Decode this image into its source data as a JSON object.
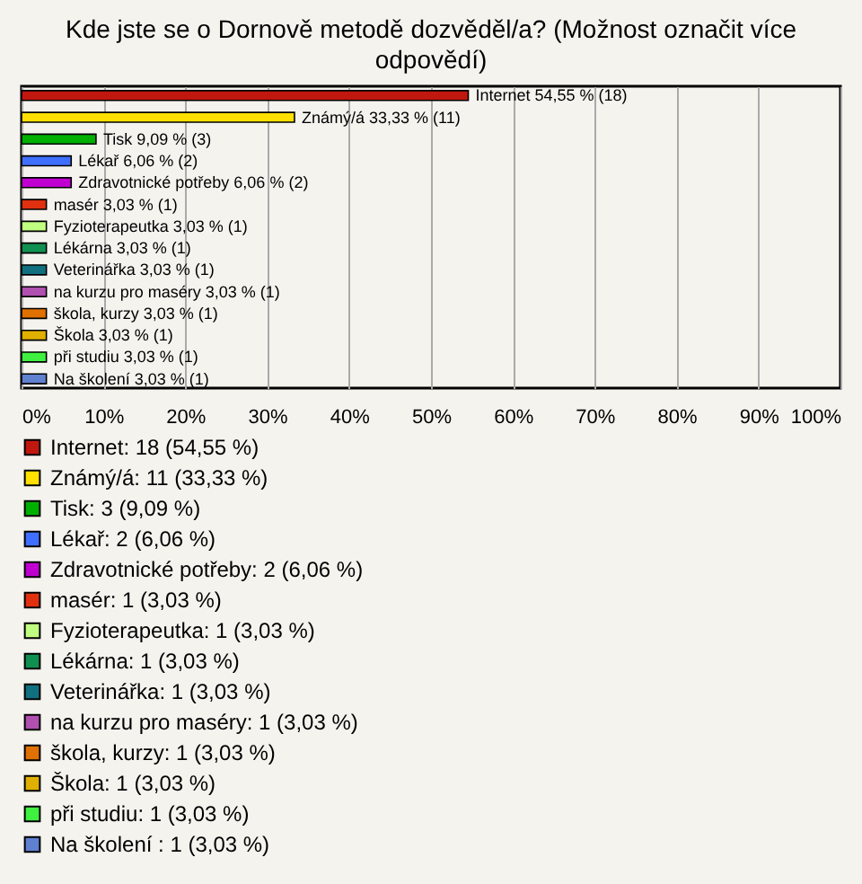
{
  "chart_data": {
    "type": "bar",
    "orientation": "horizontal",
    "stacked": true,
    "title": "Kde jste se o Dornově metodě dozvěděl/a? (Možnost označit více odpovědí)",
    "categories": [
      null,
      null,
      null,
      null,
      null,
      null,
      null,
      null,
      null,
      null,
      null,
      null,
      null,
      null
    ],
    "series": [
      {
        "name": "Internet: 18 (54,55 %)",
        "color": "#c0170f",
        "values": [
          54.55,
          null,
          null,
          null,
          null,
          null,
          null,
          null,
          null,
          null,
          null,
          null,
          null,
          null
        ],
        "value_labels": [
          "Internet 54,55 % (18)",
          null,
          null,
          null,
          null,
          null,
          null,
          null,
          null,
          null,
          null,
          null,
          null,
          null
        ]
      },
      {
        "name": "Známý/á: 11 (33,33 %)",
        "color": "#ffe000",
        "values": [
          null,
          33.33,
          null,
          null,
          null,
          null,
          null,
          null,
          null,
          null,
          null,
          null,
          null,
          null
        ],
        "value_labels": [
          null,
          "Známý/á 33,33 % (11)",
          null,
          null,
          null,
          null,
          null,
          null,
          null,
          null,
          null,
          null,
          null,
          null
        ]
      },
      {
        "name": "Tisk: 3 (9,09 %)",
        "color": "#00b000",
        "values": [
          null,
          null,
          9.09,
          null,
          null,
          null,
          null,
          null,
          null,
          null,
          null,
          null,
          null,
          null
        ],
        "value_labels": [
          null,
          null,
          "Tisk 9,09 % (3)",
          null,
          null,
          null,
          null,
          null,
          null,
          null,
          null,
          null,
          null,
          null
        ]
      },
      {
        "name": "Lékař: 2 (6,06 %)",
        "color": "#3f6fff",
        "values": [
          null,
          null,
          null,
          6.06,
          null,
          null,
          null,
          null,
          null,
          null,
          null,
          null,
          null,
          null
        ],
        "value_labels": [
          null,
          null,
          null,
          "Lékař 6,06 % (2)",
          null,
          null,
          null,
          null,
          null,
          null,
          null,
          null,
          null,
          null
        ]
      },
      {
        "name": "Zdravotnické potřeby: 2 (6,06 %)",
        "color": "#c000d0",
        "values": [
          null,
          null,
          null,
          null,
          6.06,
          null,
          null,
          null,
          null,
          null,
          null,
          null,
          null,
          null
        ],
        "value_labels": [
          null,
          null,
          null,
          null,
          "Zdravotnické potřeby 6,06 % (2)",
          null,
          null,
          null,
          null,
          null,
          null,
          null,
          null,
          null
        ]
      },
      {
        "name": "masér: 1 (3,03 %)",
        "color": "#e03010",
        "values": [
          null,
          null,
          null,
          null,
          null,
          3.03,
          null,
          null,
          null,
          null,
          null,
          null,
          null,
          null
        ],
        "value_labels": [
          null,
          null,
          null,
          null,
          null,
          "masér 3,03 % (1)",
          null,
          null,
          null,
          null,
          null,
          null,
          null,
          null
        ]
      },
      {
        "name": "Fyzioterapeutka: 1 (3,03 %)",
        "color": "#c0ff80",
        "values": [
          null,
          null,
          null,
          null,
          null,
          null,
          3.03,
          null,
          null,
          null,
          null,
          null,
          null,
          null
        ],
        "value_labels": [
          null,
          null,
          null,
          null,
          null,
          null,
          "Fyzioterapeutka 3,03 % (1)",
          null,
          null,
          null,
          null,
          null,
          null,
          null
        ]
      },
      {
        "name": "Lékárna: 1 (3,03 %)",
        "color": "#109050",
        "values": [
          null,
          null,
          null,
          null,
          null,
          null,
          null,
          3.03,
          null,
          null,
          null,
          null,
          null,
          null
        ],
        "value_labels": [
          null,
          null,
          null,
          null,
          null,
          null,
          null,
          "Lékárna 3,03 % (1)",
          null,
          null,
          null,
          null,
          null,
          null
        ]
      },
      {
        "name": "Veterinářka: 1 (3,03 %)",
        "color": "#107080",
        "values": [
          null,
          null,
          null,
          null,
          null,
          null,
          null,
          null,
          3.03,
          null,
          null,
          null,
          null,
          null
        ],
        "value_labels": [
          null,
          null,
          null,
          null,
          null,
          null,
          null,
          null,
          "Veterinářka 3,03 % (1)",
          null,
          null,
          null,
          null,
          null
        ]
      },
      {
        "name": "na kurzu pro maséry: 1 (3,03 %)",
        "color": "#b050b0",
        "values": [
          null,
          null,
          null,
          null,
          null,
          null,
          null,
          null,
          null,
          3.03,
          null,
          null,
          null,
          null
        ],
        "value_labels": [
          null,
          null,
          null,
          null,
          null,
          null,
          null,
          null,
          null,
          "na kurzu pro maséry 3,03 % (1)",
          null,
          null,
          null,
          null
        ]
      },
      {
        "name": "škola, kurzy: 1 (3,03 %)",
        "color": "#e07000",
        "values": [
          null,
          null,
          null,
          null,
          null,
          null,
          null,
          null,
          null,
          null,
          3.03,
          null,
          null,
          null
        ],
        "value_labels": [
          null,
          null,
          null,
          null,
          null,
          null,
          null,
          null,
          null,
          null,
          "škola, kurzy 3,03 % (1)",
          null,
          null,
          null
        ]
      },
      {
        "name": "Škola: 1 (3,03 %)",
        "color": "#e0b000",
        "values": [
          null,
          null,
          null,
          null,
          null,
          null,
          null,
          null,
          null,
          null,
          null,
          3.03,
          null,
          null
        ],
        "value_labels": [
          null,
          null,
          null,
          null,
          null,
          null,
          null,
          null,
          null,
          null,
          null,
          "Škola 3,03 % (1)",
          null,
          null
        ]
      },
      {
        "name": "při studiu: 1 (3,03 %)",
        "color": "#40f040",
        "values": [
          null,
          null,
          null,
          null,
          null,
          null,
          null,
          null,
          null,
          null,
          null,
          null,
          3.03,
          null
        ],
        "value_labels": [
          null,
          null,
          null,
          null,
          null,
          null,
          null,
          null,
          null,
          null,
          null,
          null,
          "při studiu 3,03 % (1)",
          null
        ]
      },
      {
        "name": "Na školení : 1 (3,03 %)",
        "color": "#6080d0",
        "values": [
          null,
          null,
          null,
          null,
          null,
          null,
          null,
          null,
          null,
          null,
          null,
          null,
          null,
          3.03
        ],
        "value_labels": [
          null,
          null,
          null,
          null,
          null,
          null,
          null,
          null,
          null,
          null,
          null,
          null,
          null,
          "Na školení  3,03 % (1)"
        ]
      }
    ],
    "xlim": [
      0,
      100
    ],
    "xticks": [
      {
        "value": 0,
        "label": "0%"
      },
      {
        "value": 10,
        "label": "10%"
      },
      {
        "value": 20,
        "label": "20%"
      },
      {
        "value": 30,
        "label": "30%"
      },
      {
        "value": 40,
        "label": "40%"
      },
      {
        "value": 50,
        "label": "50%"
      },
      {
        "value": 60,
        "label": "60%"
      },
      {
        "value": 70,
        "label": "70%"
      },
      {
        "value": 80,
        "label": "80%"
      },
      {
        "value": 90,
        "label": "90%"
      },
      {
        "value": 100,
        "label": "100%"
      }
    ],
    "grid": "x",
    "legend": "bottom",
    "tick_labels": "x"
  }
}
